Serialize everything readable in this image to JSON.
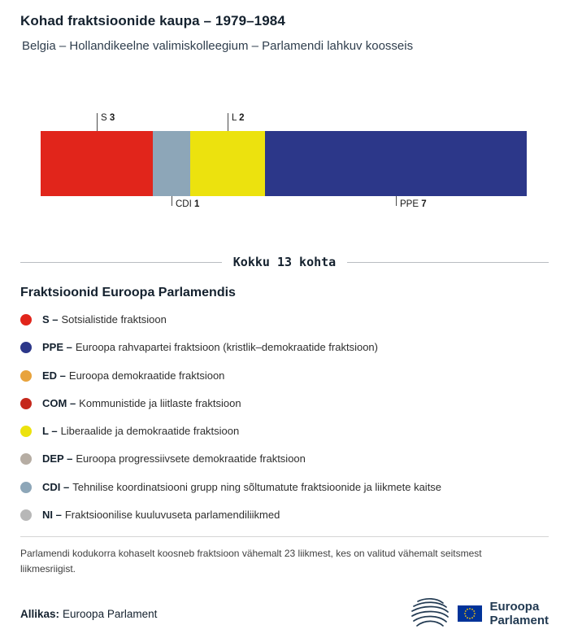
{
  "chart_data": {
    "type": "bar",
    "orientation": "horizontal-stacked",
    "title": "Kohad fraktsioonide kaupa – 1979–1984",
    "subtitle": "Belgia – Hollandikeelne valimiskolleegium – Parlamendi lahkuv koosseis",
    "total_seats": 13,
    "total_label": "Kokku 13 kohta",
    "categories": [
      "S",
      "CDI",
      "L",
      "PPE"
    ],
    "values": [
      3,
      1,
      2,
      7
    ],
    "segments": [
      {
        "code": "S",
        "seats": 3,
        "color": "#e1251b",
        "label_position": "top"
      },
      {
        "code": "CDI",
        "seats": 1,
        "color": "#8da6b8",
        "label_position": "bottom"
      },
      {
        "code": "L",
        "seats": 2,
        "color": "#ece20e",
        "label_position": "top"
      },
      {
        "code": "PPE",
        "seats": 7,
        "color": "#2c3789",
        "label_position": "bottom"
      }
    ]
  },
  "legend": {
    "heading": "Fraktsioonid Euroopa Parlamendis",
    "items": [
      {
        "code": "S –",
        "description": "Sotsialistide fraktsioon",
        "color": "#e1251b"
      },
      {
        "code": "PPE –",
        "description": "Euroopa rahvapartei fraktsioon (kristlik–demokraatide fraktsioon)",
        "color": "#2c3789"
      },
      {
        "code": "ED –",
        "description": "Euroopa demokraatide fraktsioon",
        "color": "#e8a33c"
      },
      {
        "code": "COM –",
        "description": "Kommunistide ja liitlaste fraktsioon",
        "color": "#c5281c"
      },
      {
        "code": "L –",
        "description": "Liberaalide ja demokraatide fraktsioon",
        "color": "#ece20e"
      },
      {
        "code": "DEP –",
        "description": "Euroopa progressiivsete demokraatide fraktsioon",
        "color": "#b6ada3"
      },
      {
        "code": "CDI –",
        "description": "Tehnilise koordinatsiooni grupp ning sõltumatute fraktsioonide ja liikmete kaitse",
        "color": "#8da6b8"
      },
      {
        "code": "NI –",
        "description": "Fraktsioonilise kuuluvuseta parlamendiliikmed",
        "color": "#b7b7b7"
      }
    ]
  },
  "footnote": "Parlamendi kodukorra kohaselt koosneb fraktsioon vähemalt 23 liikmest, kes on valitud vähemalt seitsmest liikmesriigist.",
  "source": {
    "label": "Allikas:",
    "value": "Euroopa Parlament"
  },
  "logo": {
    "line1": "Euroopa",
    "line2": "Parlament"
  }
}
